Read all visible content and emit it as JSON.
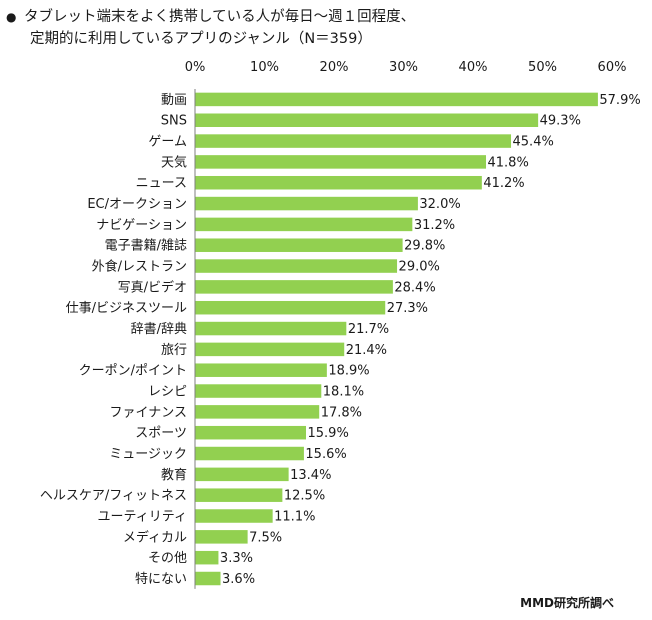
{
  "title": {
    "line1": "タブレット端末をよく携帯している人が毎日～週１回程度、",
    "line2": "定期的に利用しているアプリのジャンル（N＝359）"
  },
  "source": "MMD研究所調べ",
  "colors": {
    "bar": "#92d050",
    "axis": "#7f7f7f",
    "grid": "#d9d9d9"
  },
  "chart_data": {
    "type": "bar",
    "orientation": "horizontal",
    "categories": [
      "動画",
      "SNS",
      "ゲーム",
      "天気",
      "ニュース",
      "EC/オークション",
      "ナビゲーション",
      "電子書籍/雑誌",
      "外食/レストラン",
      "写真/ビデオ",
      "仕事/ビジネスツール",
      "辞書/辞典",
      "旅行",
      "クーポン/ポイント",
      "レシピ",
      "ファイナンス",
      "スポーツ",
      "ミュージック",
      "教育",
      "ヘルスケア/フィットネス",
      "ユーティリティ",
      "メディカル",
      "その他",
      "特にない"
    ],
    "values": [
      57.9,
      49.3,
      45.4,
      41.8,
      41.2,
      32.0,
      31.2,
      29.8,
      29.0,
      28.4,
      27.3,
      21.7,
      21.4,
      18.9,
      18.1,
      17.8,
      15.9,
      15.6,
      13.4,
      12.5,
      11.1,
      7.5,
      3.3,
      3.6
    ],
    "value_labels": [
      "57.9%",
      "49.3%",
      "45.4%",
      "41.8%",
      "41.2%",
      "32.0%",
      "31.2%",
      "29.8%",
      "29.0%",
      "28.4%",
      "27.3%",
      "21.7%",
      "21.4%",
      "18.9%",
      "18.1%",
      "17.8%",
      "15.9%",
      "15.6%",
      "13.4%",
      "12.5%",
      "11.1%",
      "7.5%",
      "3.3%",
      "3.6%"
    ],
    "xlim": [
      0,
      60
    ],
    "ticks": [
      "0%",
      "10%",
      "20%",
      "30%",
      "40%",
      "50%",
      "60%"
    ],
    "tick_values": [
      0,
      10,
      20,
      30,
      40,
      50,
      60
    ],
    "axis_position": "top",
    "grid": false,
    "legend": "none"
  }
}
